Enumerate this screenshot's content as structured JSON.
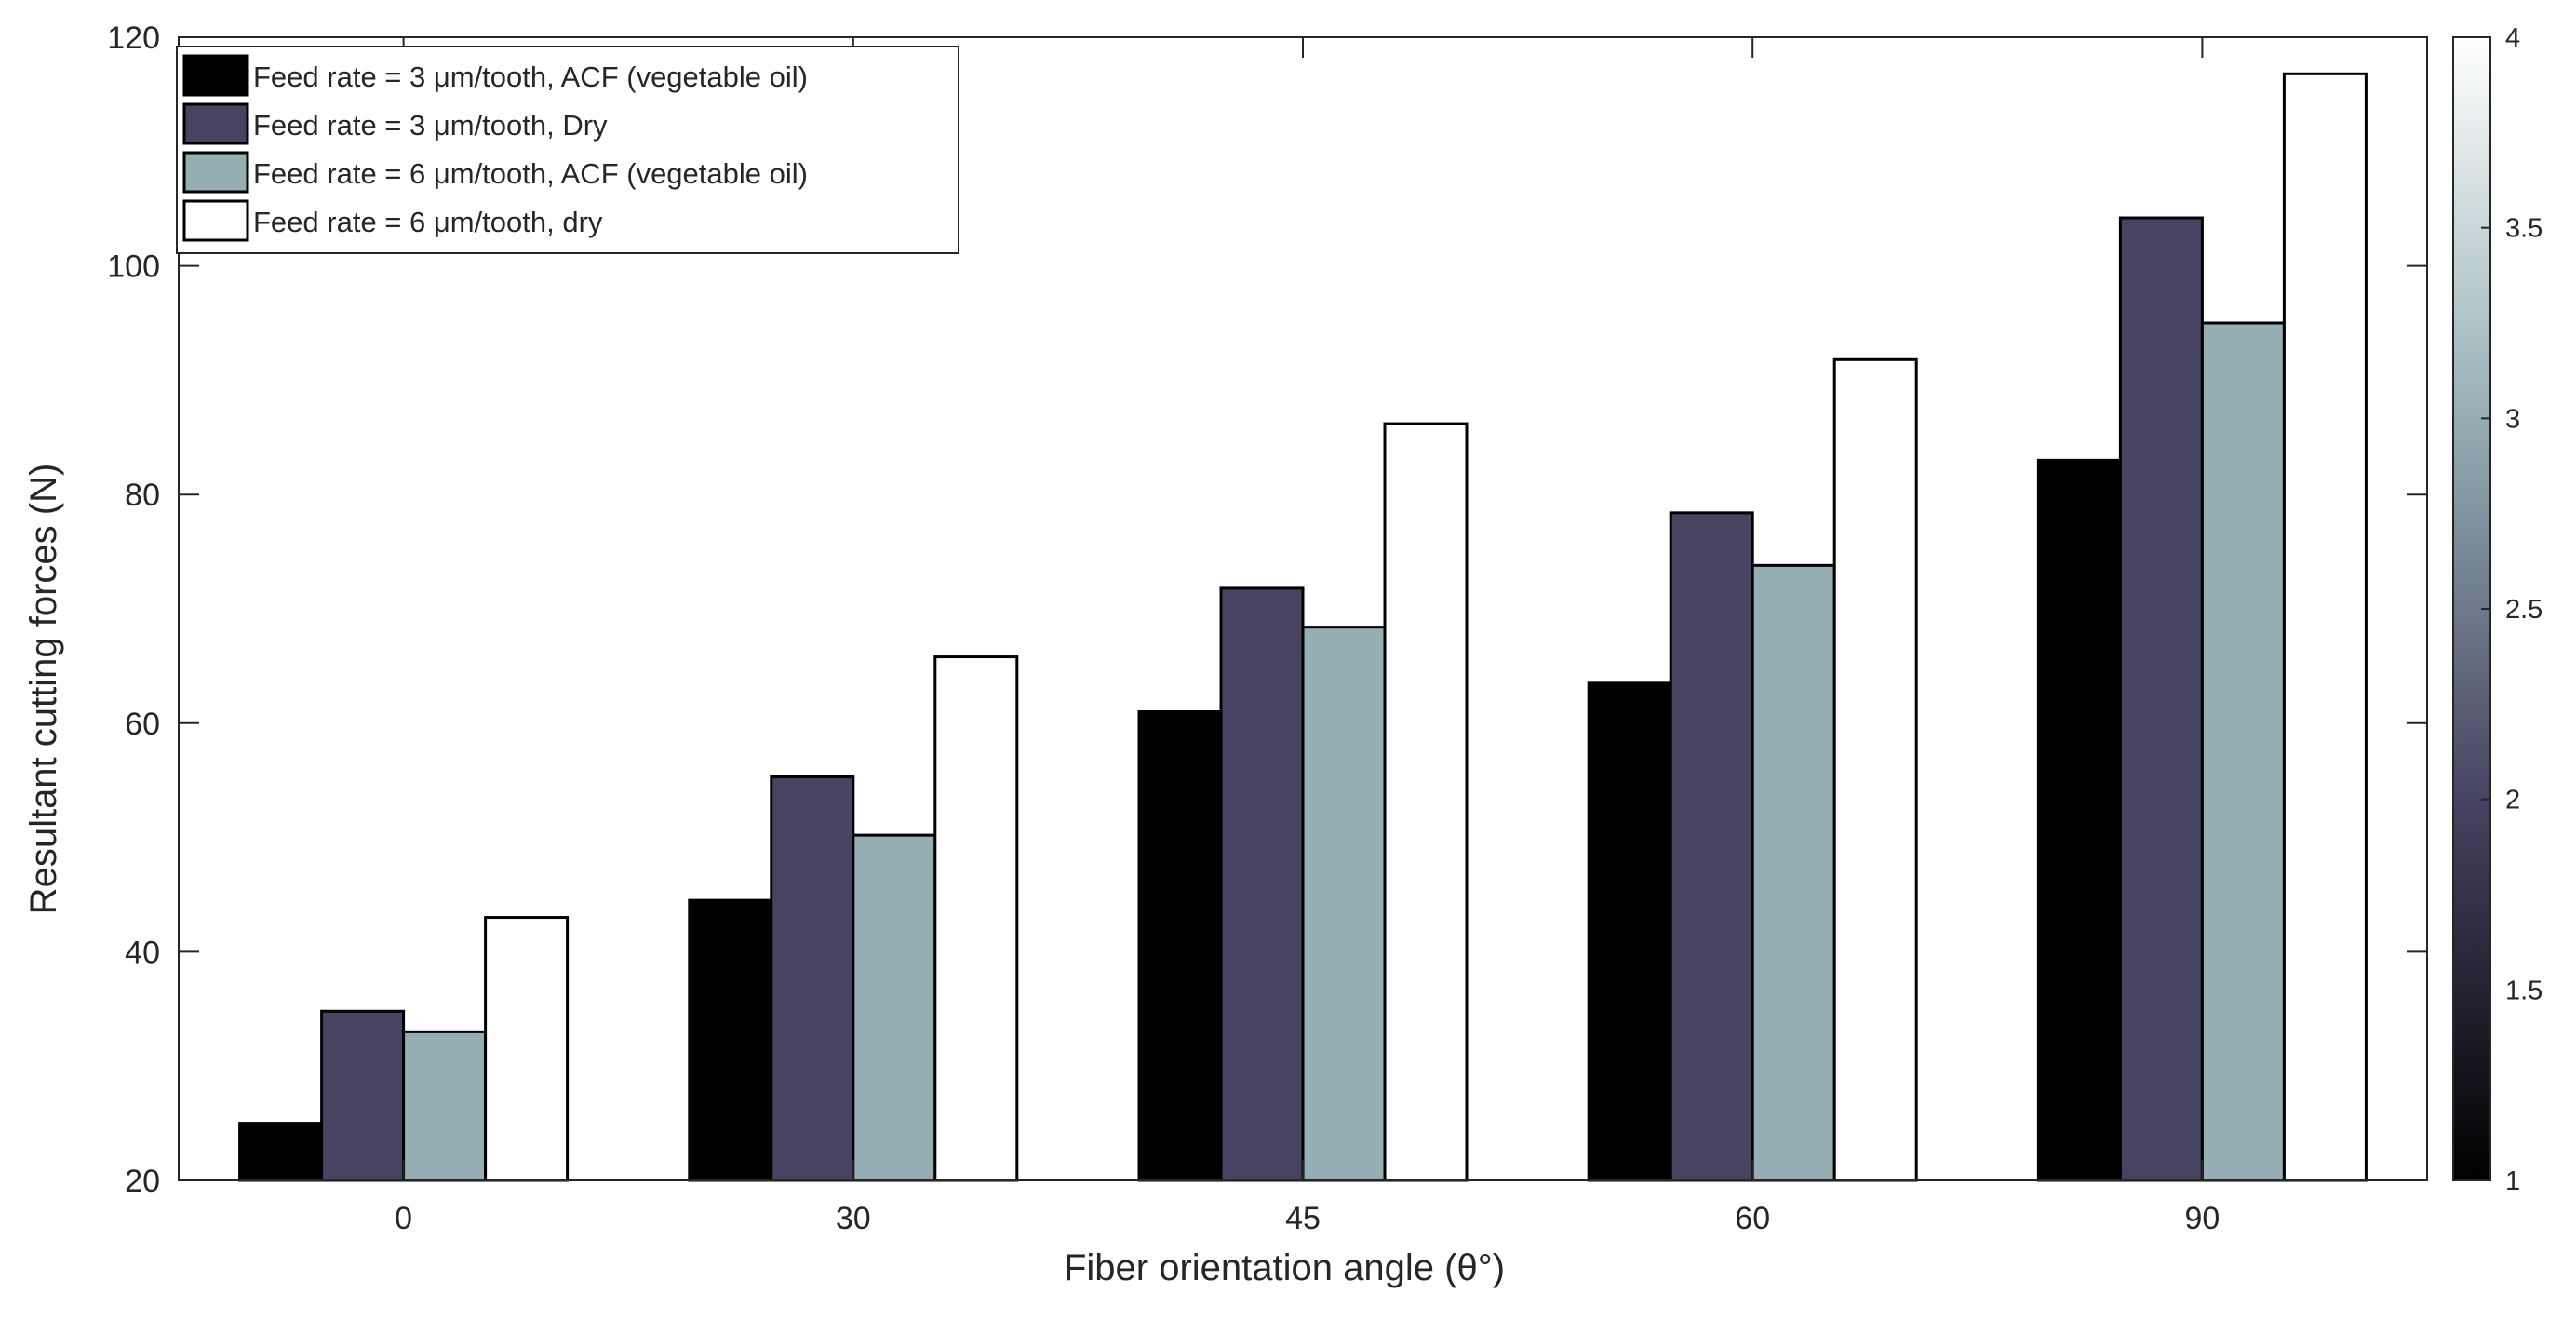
{
  "chart_data": {
    "type": "bar",
    "categories": [
      "0",
      "30",
      "45",
      "60",
      "90"
    ],
    "series": [
      {
        "name": "Feed rate = 3 μm/tooth, ACF (vegetable oil)",
        "color": "#000000",
        "values": [
          25.0,
          44.5,
          61.0,
          63.5,
          83.0
        ]
      },
      {
        "name": "Feed rate = 3 μm/tooth, Dry",
        "color": "#464461",
        "values": [
          34.8,
          55.3,
          71.8,
          78.4,
          104.2
        ]
      },
      {
        "name": "Feed rate = 6 μm/tooth, ACF (vegetable oil)",
        "color": "#95aeb3",
        "values": [
          33.0,
          50.2,
          68.4,
          73.8,
          95.0
        ]
      },
      {
        "name": "Feed rate = 6 μm/tooth, dry",
        "color": "#ffffff",
        "values": [
          43.0,
          65.8,
          86.2,
          91.8,
          116.8
        ]
      }
    ],
    "xlabel": "Fiber orientation angle (θ°)",
    "ylabel": "Resultant cutting forces (N)",
    "ylim": [
      20,
      120
    ],
    "yticks": [
      "20",
      "40",
      "60",
      "80",
      "100",
      "120"
    ],
    "grid": false,
    "legend_position": "top-left",
    "colorbar": {
      "range": [
        1,
        4
      ],
      "ticks": [
        "1",
        "1.5",
        "2",
        "2.5",
        "3",
        "3.5",
        "4"
      ],
      "colors": [
        "#000000",
        "#464461",
        "#95aeb3",
        "#ffffff"
      ]
    }
  }
}
